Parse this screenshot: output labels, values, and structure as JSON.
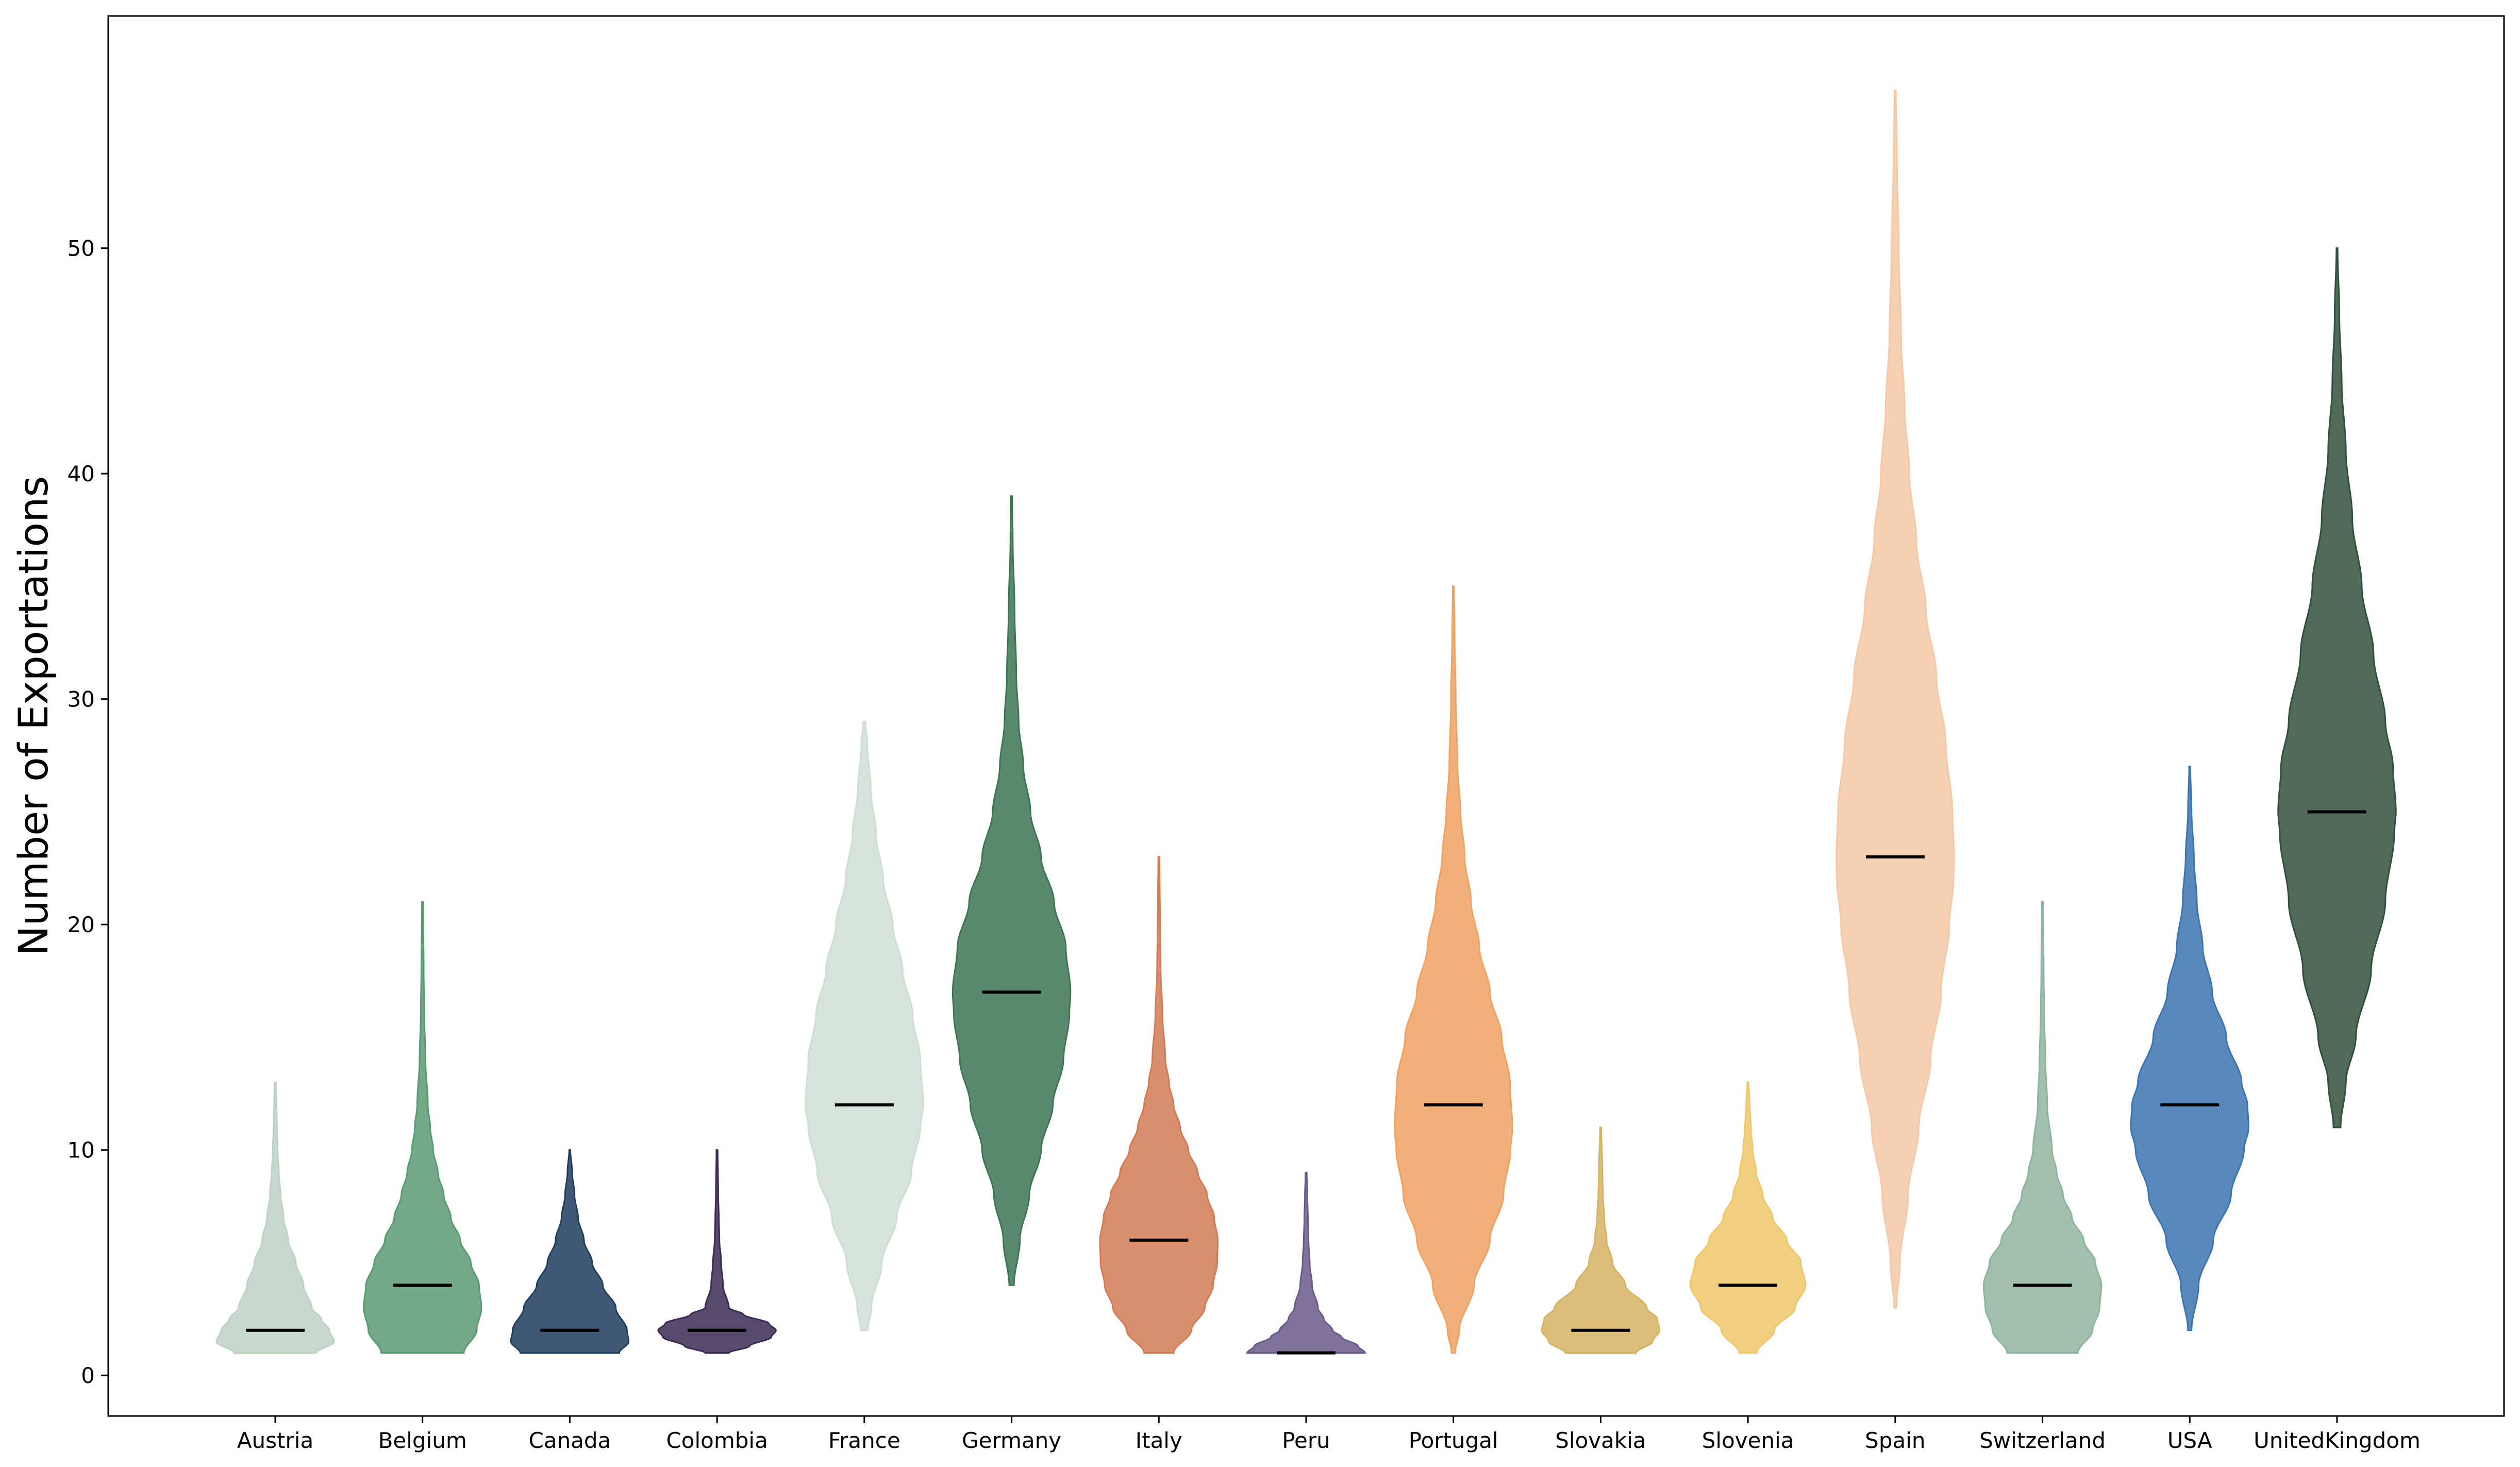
{
  "chart_data": {
    "type": "violin",
    "title": "",
    "xlabel": "",
    "ylabel": "Number of Exportations",
    "ylim": [
      -1.8,
      60.3
    ],
    "yticks": [
      0,
      10,
      20,
      30,
      40,
      50
    ],
    "grid": false,
    "legend": "none",
    "categories": [
      "Austria",
      "Belgium",
      "Canada",
      "Colombia",
      "France",
      "Germany",
      "Italy",
      "Peru",
      "Portugal",
      "Slovakia",
      "Slovenia",
      "Spain",
      "Switzerland",
      "USA",
      "UnitedKingdom"
    ],
    "series": [
      {
        "category": "Austria",
        "color": "#bdd1c5",
        "min": 1,
        "max": 13,
        "median": 2,
        "density": [
          [
            1,
            0.7
          ],
          [
            1.5,
            1.0
          ],
          [
            2,
            0.92
          ],
          [
            2.5,
            0.78
          ],
          [
            3,
            0.62
          ],
          [
            4,
            0.48
          ],
          [
            5,
            0.35
          ],
          [
            6,
            0.22
          ],
          [
            7,
            0.14
          ],
          [
            8,
            0.09
          ],
          [
            9,
            0.06
          ],
          [
            10,
            0.04
          ],
          [
            11,
            0.03
          ],
          [
            12,
            0.02
          ],
          [
            13,
            0.01
          ]
        ]
      },
      {
        "category": "Belgium",
        "color": "#5a9a72",
        "min": 1,
        "max": 21,
        "median": 4,
        "density": [
          [
            1,
            0.7
          ],
          [
            2,
            0.92
          ],
          [
            3,
            1.0
          ],
          [
            4,
            0.96
          ],
          [
            5,
            0.82
          ],
          [
            6,
            0.64
          ],
          [
            7,
            0.48
          ],
          [
            8,
            0.36
          ],
          [
            9,
            0.26
          ],
          [
            10,
            0.18
          ],
          [
            11,
            0.13
          ],
          [
            12,
            0.09
          ],
          [
            14,
            0.05
          ],
          [
            16,
            0.03
          ],
          [
            18,
            0.02
          ],
          [
            21,
            0.01
          ]
        ]
      },
      {
        "category": "Canada",
        "color": "#1f3d5e",
        "min": 1,
        "max": 10,
        "median": 2,
        "density": [
          [
            1,
            0.84
          ],
          [
            1.5,
            1.0
          ],
          [
            2,
            0.97
          ],
          [
            3,
            0.78
          ],
          [
            4,
            0.56
          ],
          [
            5,
            0.38
          ],
          [
            6,
            0.24
          ],
          [
            7,
            0.14
          ],
          [
            8,
            0.08
          ],
          [
            9,
            0.04
          ],
          [
            10,
            0.01
          ]
        ]
      },
      {
        "category": "Colombia",
        "color": "#3b2a53",
        "min": 1,
        "max": 10,
        "median": 2,
        "density": [
          [
            1,
            0.2
          ],
          [
            1.3,
            0.55
          ],
          [
            1.7,
            0.92
          ],
          [
            2,
            1.0
          ],
          [
            2.3,
            0.88
          ],
          [
            2.7,
            0.45
          ],
          [
            3,
            0.2
          ],
          [
            4,
            0.1
          ],
          [
            5,
            0.07
          ],
          [
            6,
            0.04
          ],
          [
            7,
            0.03
          ],
          [
            8,
            0.02
          ],
          [
            10,
            0.01
          ]
        ]
      },
      {
        "category": "France",
        "color": "#cfddd6",
        "min": 2,
        "max": 29,
        "median": 12,
        "density": [
          [
            2,
            0.06
          ],
          [
            3,
            0.12
          ],
          [
            5,
            0.3
          ],
          [
            7,
            0.55
          ],
          [
            9,
            0.8
          ],
          [
            11,
            0.95
          ],
          [
            12,
            1.0
          ],
          [
            14,
            0.95
          ],
          [
            16,
            0.82
          ],
          [
            18,
            0.65
          ],
          [
            20,
            0.48
          ],
          [
            22,
            0.32
          ],
          [
            24,
            0.2
          ],
          [
            26,
            0.11
          ],
          [
            28,
            0.05
          ],
          [
            29,
            0.02
          ]
        ]
      },
      {
        "category": "Germany",
        "color": "#3d7553",
        "min": 4,
        "max": 39,
        "median": 17,
        "density": [
          [
            4,
            0.04
          ],
          [
            6,
            0.14
          ],
          [
            8,
            0.3
          ],
          [
            10,
            0.5
          ],
          [
            12,
            0.7
          ],
          [
            14,
            0.88
          ],
          [
            16,
            0.98
          ],
          [
            17,
            1.0
          ],
          [
            19,
            0.92
          ],
          [
            21,
            0.72
          ],
          [
            23,
            0.5
          ],
          [
            25,
            0.32
          ],
          [
            27,
            0.2
          ],
          [
            29,
            0.12
          ],
          [
            31,
            0.08
          ],
          [
            34,
            0.05
          ],
          [
            37,
            0.02
          ],
          [
            39,
            0.01
          ]
        ]
      },
      {
        "category": "Italy",
        "color": "#d27b55",
        "min": 1,
        "max": 23,
        "median": 6,
        "density": [
          [
            1,
            0.25
          ],
          [
            2,
            0.55
          ],
          [
            3,
            0.78
          ],
          [
            4,
            0.92
          ],
          [
            5,
            0.99
          ],
          [
            6,
            1.0
          ],
          [
            7,
            0.94
          ],
          [
            8,
            0.82
          ],
          [
            9,
            0.66
          ],
          [
            10,
            0.5
          ],
          [
            11,
            0.36
          ],
          [
            12,
            0.25
          ],
          [
            13,
            0.17
          ],
          [
            14,
            0.11
          ],
          [
            16,
            0.06
          ],
          [
            18,
            0.03
          ],
          [
            20,
            0.02
          ],
          [
            23,
            0.01
          ]
        ]
      },
      {
        "category": "Peru",
        "color": "#6a5a89",
        "min": 1,
        "max": 9,
        "median": 1,
        "density": [
          [
            1,
            1.0
          ],
          [
            1.3,
            0.88
          ],
          [
            1.7,
            0.6
          ],
          [
            2,
            0.45
          ],
          [
            2.5,
            0.3
          ],
          [
            3,
            0.2
          ],
          [
            4,
            0.1
          ],
          [
            5,
            0.06
          ],
          [
            6,
            0.04
          ],
          [
            7,
            0.03
          ],
          [
            8,
            0.02
          ],
          [
            9,
            0.01
          ]
        ]
      },
      {
        "category": "Portugal",
        "color": "#eea263",
        "min": 1,
        "max": 35,
        "median": 12,
        "density": [
          [
            1,
            0.03
          ],
          [
            2,
            0.1
          ],
          [
            4,
            0.35
          ],
          [
            6,
            0.62
          ],
          [
            8,
            0.85
          ],
          [
            10,
            0.97
          ],
          [
            11,
            1.0
          ],
          [
            13,
            0.96
          ],
          [
            15,
            0.82
          ],
          [
            17,
            0.62
          ],
          [
            19,
            0.44
          ],
          [
            21,
            0.3
          ],
          [
            23,
            0.19
          ],
          [
            25,
            0.12
          ],
          [
            27,
            0.07
          ],
          [
            30,
            0.04
          ],
          [
            33,
            0.02
          ],
          [
            35,
            0.01
          ]
        ]
      },
      {
        "category": "Slovakia",
        "color": "#d6b263",
        "min": 1,
        "max": 11,
        "median": 2,
        "density": [
          [
            1,
            0.6
          ],
          [
            1.5,
            0.88
          ],
          [
            2,
            1.0
          ],
          [
            2.5,
            0.96
          ],
          [
            3,
            0.78
          ],
          [
            4,
            0.42
          ],
          [
            5,
            0.2
          ],
          [
            6,
            0.1
          ],
          [
            7,
            0.06
          ],
          [
            8,
            0.04
          ],
          [
            9,
            0.03
          ],
          [
            11,
            0.01
          ]
        ]
      },
      {
        "category": "Slovenia",
        "color": "#f0c66a",
        "min": 1,
        "max": 13,
        "median": 4,
        "density": [
          [
            1,
            0.15
          ],
          [
            2,
            0.45
          ],
          [
            3,
            0.8
          ],
          [
            4,
            0.98
          ],
          [
            5,
            0.9
          ],
          [
            6,
            0.66
          ],
          [
            7,
            0.42
          ],
          [
            8,
            0.25
          ],
          [
            9,
            0.14
          ],
          [
            10,
            0.08
          ],
          [
            11,
            0.05
          ],
          [
            12,
            0.03
          ],
          [
            13,
            0.01
          ]
        ]
      },
      {
        "category": "Spain",
        "color": "#f5c8a6",
        "min": 3,
        "max": 57,
        "median": 23,
        "density": [
          [
            3,
            0.02
          ],
          [
            5,
            0.08
          ],
          [
            8,
            0.22
          ],
          [
            11,
            0.4
          ],
          [
            14,
            0.6
          ],
          [
            17,
            0.78
          ],
          [
            20,
            0.92
          ],
          [
            22,
            0.99
          ],
          [
            23,
            1.0
          ],
          [
            25,
            0.97
          ],
          [
            28,
            0.86
          ],
          [
            31,
            0.7
          ],
          [
            34,
            0.52
          ],
          [
            37,
            0.36
          ],
          [
            40,
            0.24
          ],
          [
            43,
            0.16
          ],
          [
            46,
            0.1
          ],
          [
            50,
            0.06
          ],
          [
            54,
            0.03
          ],
          [
            57,
            0.01
          ]
        ]
      },
      {
        "category": "Switzerland",
        "color": "#8fb49e",
        "min": 1,
        "max": 21,
        "median": 4,
        "density": [
          [
            1,
            0.6
          ],
          [
            2,
            0.85
          ],
          [
            3,
            0.97
          ],
          [
            4,
            1.0
          ],
          [
            5,
            0.9
          ],
          [
            6,
            0.7
          ],
          [
            7,
            0.5
          ],
          [
            8,
            0.35
          ],
          [
            9,
            0.24
          ],
          [
            10,
            0.16
          ],
          [
            12,
            0.08
          ],
          [
            14,
            0.05
          ],
          [
            16,
            0.03
          ],
          [
            18,
            0.02
          ],
          [
            21,
            0.01
          ]
        ]
      },
      {
        "category": "USA",
        "color": "#3c74b0",
        "min": 2,
        "max": 27,
        "median": 12,
        "density": [
          [
            2,
            0.03
          ],
          [
            4,
            0.15
          ],
          [
            6,
            0.4
          ],
          [
            8,
            0.7
          ],
          [
            10,
            0.92
          ],
          [
            11,
            1.0
          ],
          [
            12,
            0.98
          ],
          [
            13,
            0.88
          ],
          [
            15,
            0.62
          ],
          [
            17,
            0.38
          ],
          [
            19,
            0.22
          ],
          [
            21,
            0.12
          ],
          [
            23,
            0.07
          ],
          [
            25,
            0.03
          ],
          [
            27,
            0.01
          ]
        ]
      },
      {
        "category": "UnitedKingdom",
        "color": "#30503d",
        "min": 11,
        "max": 50,
        "median": 25,
        "density": [
          [
            11,
            0.06
          ],
          [
            13,
            0.15
          ],
          [
            15,
            0.32
          ],
          [
            18,
            0.58
          ],
          [
            21,
            0.82
          ],
          [
            24,
            0.97
          ],
          [
            25,
            1.0
          ],
          [
            27,
            0.95
          ],
          [
            29,
            0.82
          ],
          [
            32,
            0.62
          ],
          [
            35,
            0.42
          ],
          [
            38,
            0.26
          ],
          [
            41,
            0.15
          ],
          [
            44,
            0.08
          ],
          [
            47,
            0.04
          ],
          [
            50,
            0.01
          ]
        ]
      }
    ]
  }
}
